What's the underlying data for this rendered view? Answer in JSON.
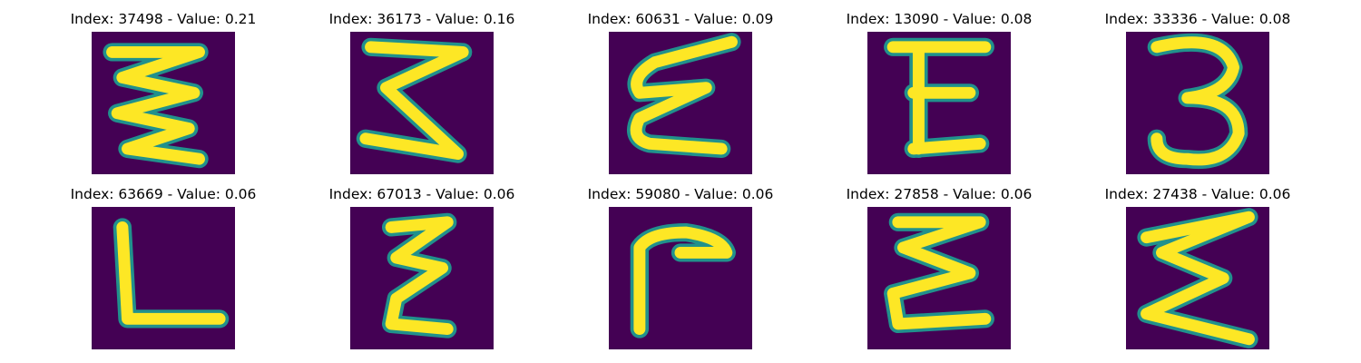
{
  "chart_data": {
    "type": "image-grid",
    "colormap": "viridis",
    "background_color": "#440154",
    "stroke_color": "#fde725",
    "edge_color": "#21918c",
    "axes_visible": false,
    "panels": [
      {
        "index": 37498,
        "value": 0.21,
        "title": "Index: 37498 - Value: 0.21",
        "glyph": "zigzag-3"
      },
      {
        "index": 36173,
        "value": 0.16,
        "title": "Index: 36173 - Value: 0.16",
        "glyph": "zigzag-2"
      },
      {
        "index": 60631,
        "value": 0.09,
        "title": "Index: 60631 - Value: 0.09",
        "glyph": "curly-e"
      },
      {
        "index": 13090,
        "value": 0.08,
        "title": "Index: 13090 - Value: 0.08",
        "glyph": "E"
      },
      {
        "index": 33336,
        "value": 0.08,
        "title": "Index: 33336 - Value: 0.08",
        "glyph": "3"
      },
      {
        "index": 63669,
        "value": 0.06,
        "title": "Index: 63669 - Value: 0.06",
        "glyph": "L"
      },
      {
        "index": 67013,
        "value": 0.06,
        "title": "Index: 67013 - Value: 0.06",
        "glyph": "thin-zigzag"
      },
      {
        "index": 59080,
        "value": 0.06,
        "title": "Index: 59080 - Value: 0.06",
        "glyph": "gamma"
      },
      {
        "index": 27858,
        "value": 0.06,
        "title": "Index: 27858 - Value: 0.06",
        "glyph": "sigma"
      },
      {
        "index": 27438,
        "value": 0.06,
        "title": "Index: 27438 - Value: 0.06",
        "glyph": "sigma-wide"
      }
    ]
  }
}
